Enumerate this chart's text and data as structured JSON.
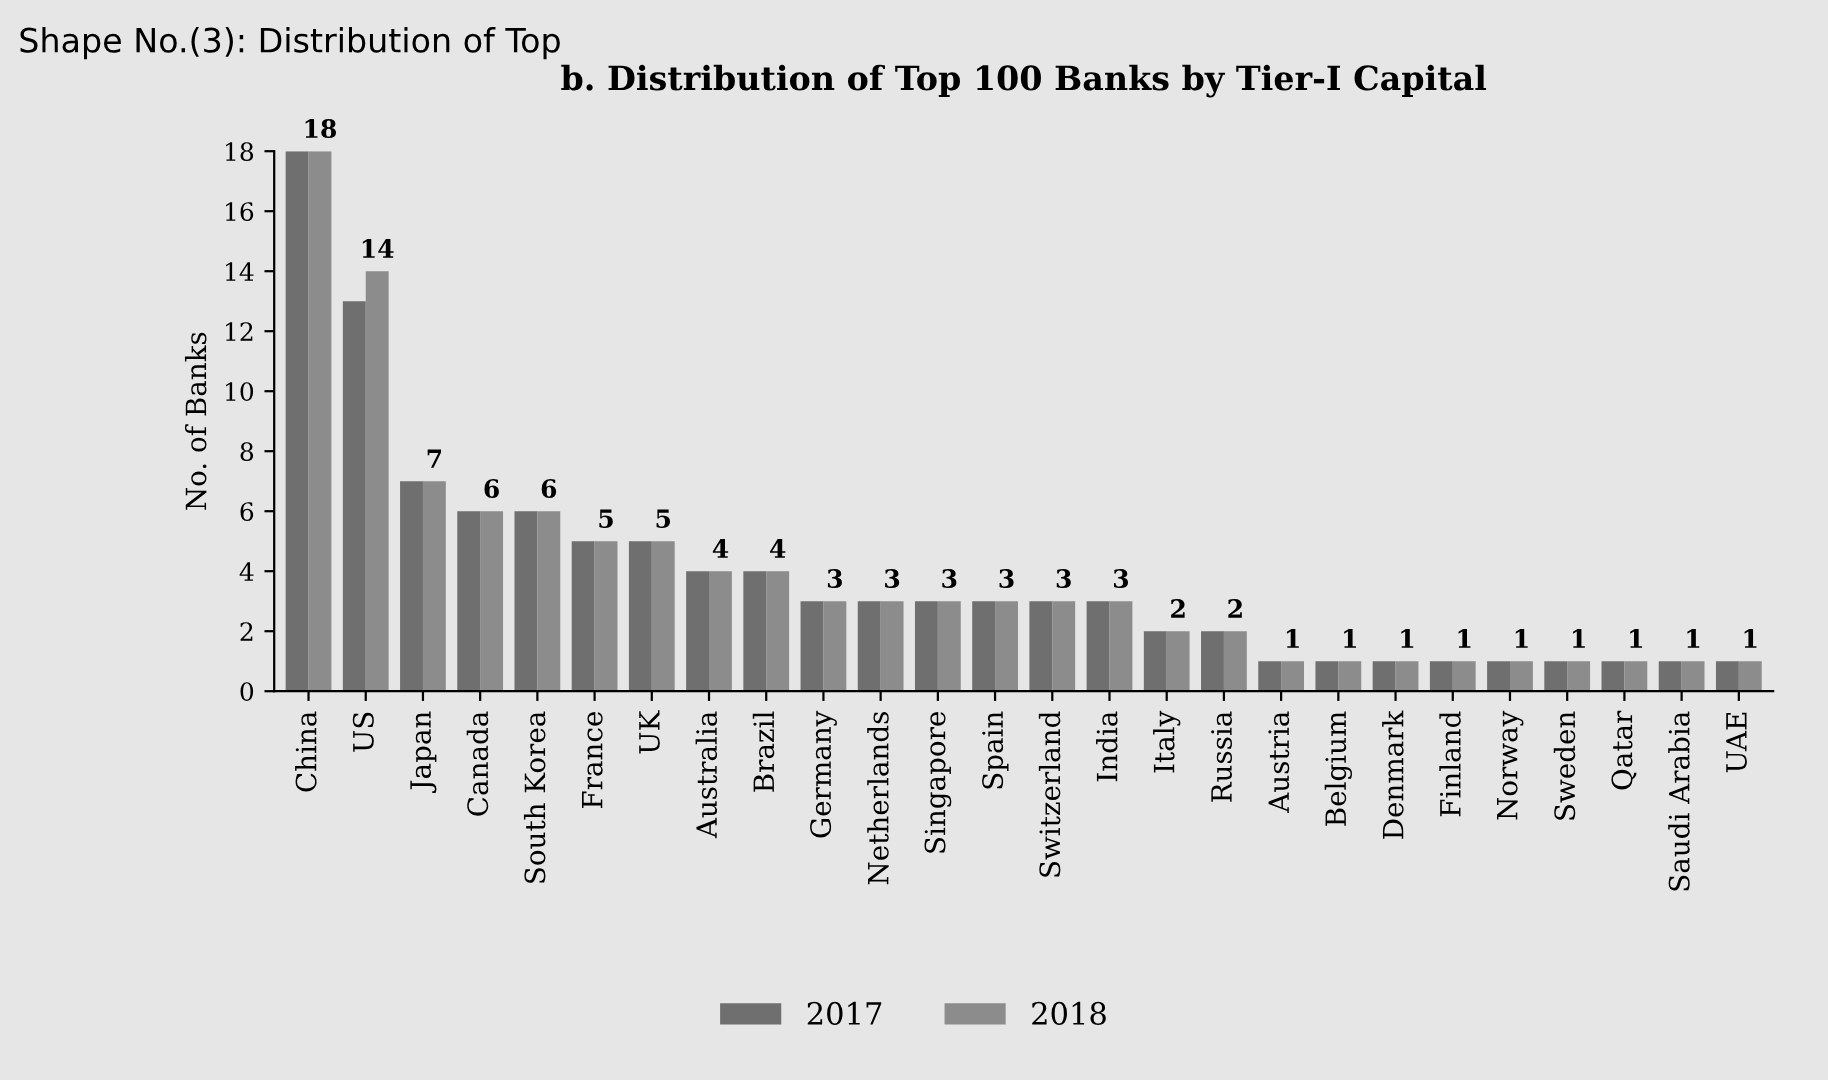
{
  "chart_data": {
    "type": "bar",
    "title": "b. Distribution of Top 100 Banks by Tier-I Capital",
    "annotations": [
      "Shape No.(3): Distribution of Top"
    ],
    "ylabel": "No. of Banks",
    "categories": [
      "China",
      "US",
      "Japan",
      "Canada",
      "South Korea",
      "France",
      "UK",
      "Australia",
      "Brazil",
      "Germany",
      "Netherlands",
      "Singapore",
      "Spain",
      "Switzerland",
      "India",
      "Italy",
      "Russia",
      "Austria",
      "Belgium",
      "Denmark",
      "Finland",
      "Norway",
      "Sweden",
      "Qatar",
      "Saudi Arabia",
      "UAE"
    ],
    "series": [
      {
        "name": "2017",
        "color": "#6f6f6f",
        "values": [
          18,
          13,
          7,
          6,
          6,
          5,
          5,
          4,
          4,
          3,
          3,
          3,
          3,
          3,
          3,
          2,
          2,
          1,
          1,
          1,
          1,
          1,
          1,
          1,
          1,
          1
        ]
      },
      {
        "name": "2018",
        "color": "#8c8c8c",
        "values": [
          18,
          14,
          7,
          6,
          6,
          5,
          5,
          4,
          4,
          3,
          3,
          3,
          3,
          3,
          3,
          2,
          2,
          1,
          1,
          1,
          1,
          1,
          1,
          1,
          1,
          1
        ],
        "value_labels": [
          "18",
          "14",
          "7",
          "6",
          "6",
          "5",
          "5",
          "4",
          "4",
          "3",
          "3",
          "3",
          "3",
          "3",
          "3",
          "2",
          "2",
          "1",
          "1",
          "1",
          "1",
          "1",
          "1",
          "1",
          "1",
          "1"
        ]
      }
    ],
    "ylim": [
      0,
      18
    ],
    "yticks": [
      0,
      2,
      4,
      6,
      8,
      10,
      12,
      14,
      16,
      18
    ],
    "grid": false,
    "legend": "bottom"
  }
}
